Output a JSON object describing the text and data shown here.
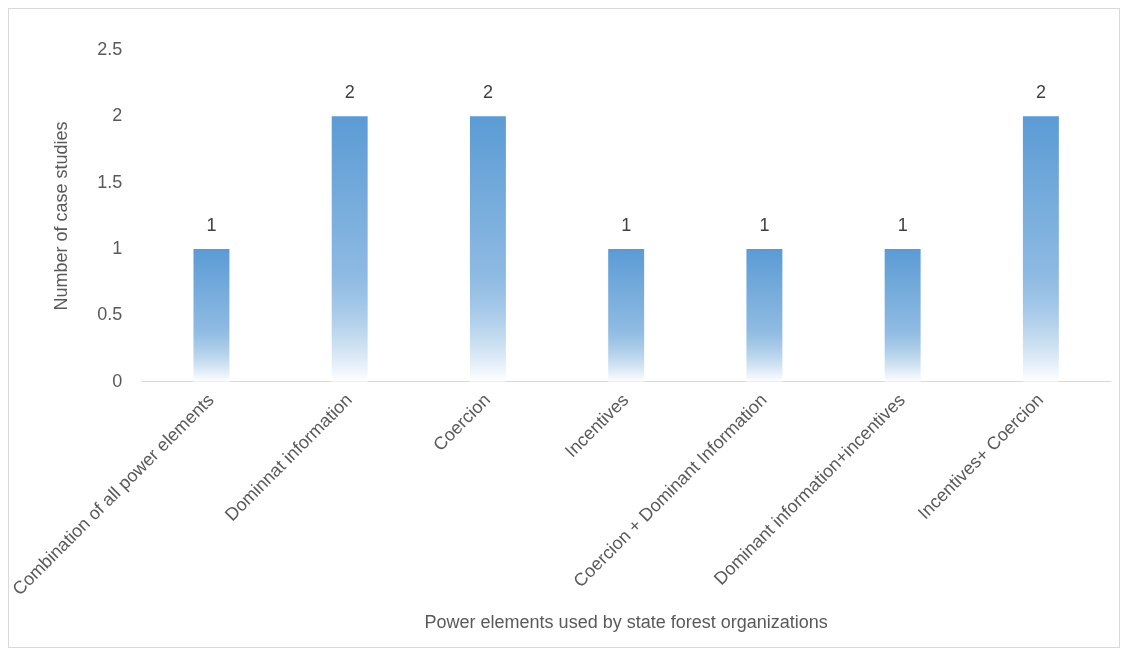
{
  "chart_data": {
    "type": "bar",
    "xlabel": "Power elements used by state forest organizations",
    "ylabel": "Number of case studies",
    "categories": [
      "Combination of all power elements",
      "Dominnat information",
      "Coercion",
      "Incentives",
      "Coercion + Dominant Information",
      "Dominant information+incentives",
      "Incentives+ Coercion"
    ],
    "values": [
      1,
      2,
      2,
      1,
      1,
      1,
      2
    ],
    "color": "#5b9bd5",
    "ylim": [
      0,
      2.5
    ],
    "yticks": [
      0,
      0.5,
      1,
      1.5,
      2,
      2.5
    ],
    "grid": false,
    "data_labels": true
  }
}
